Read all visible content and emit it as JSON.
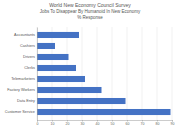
{
  "chart_data": {
    "type": "bar",
    "orientation": "horizontal",
    "title": "World New Economy Council Survey",
    "subtitle": [
      "Jobs To Disappear By Humanoid In New Economy",
      "% Response"
    ],
    "categories": [
      "Accountants",
      "Cashiers",
      "Drivers",
      "Clerks",
      "Telemarketers",
      "Factory Workers",
      "Data Entry",
      "Customer Service"
    ],
    "values": [
      28,
      12,
      21,
      26,
      32,
      43,
      59,
      89
    ],
    "color": "#4472c4",
    "xlim": [
      0,
      90
    ],
    "xticks": [
      0,
      10,
      20,
      30,
      40,
      50,
      60,
      70,
      80,
      90
    ],
    "grid": true
  }
}
